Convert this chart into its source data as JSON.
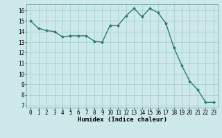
{
  "x": [
    0,
    1,
    2,
    3,
    4,
    5,
    6,
    7,
    8,
    9,
    10,
    11,
    12,
    13,
    14,
    15,
    16,
    17,
    18,
    19,
    20,
    21,
    22,
    23
  ],
  "y": [
    15.0,
    14.3,
    14.1,
    14.0,
    13.5,
    13.6,
    13.6,
    13.6,
    13.1,
    13.0,
    14.6,
    14.6,
    15.5,
    16.2,
    15.4,
    16.2,
    15.8,
    14.8,
    12.5,
    10.8,
    9.3,
    8.5,
    7.3,
    7.3
  ],
  "line_color": "#2e7d6e",
  "marker": "D",
  "marker_size": 2.0,
  "bg_color": "#cce8e8",
  "grid_color": "#aacfcf",
  "xlabel": "Humidex (Indice chaleur)",
  "xlim": [
    -0.5,
    23.5
  ],
  "ylim": [
    6.8,
    16.6
  ],
  "yticks": [
    7,
    8,
    9,
    10,
    11,
    12,
    13,
    14,
    15,
    16
  ],
  "xticks": [
    0,
    1,
    2,
    3,
    4,
    5,
    6,
    7,
    8,
    9,
    10,
    11,
    12,
    13,
    14,
    15,
    16,
    17,
    18,
    19,
    20,
    21,
    22,
    23
  ],
  "tick_fontsize": 5.5,
  "xlabel_fontsize": 6.5,
  "line_width": 1.0
}
